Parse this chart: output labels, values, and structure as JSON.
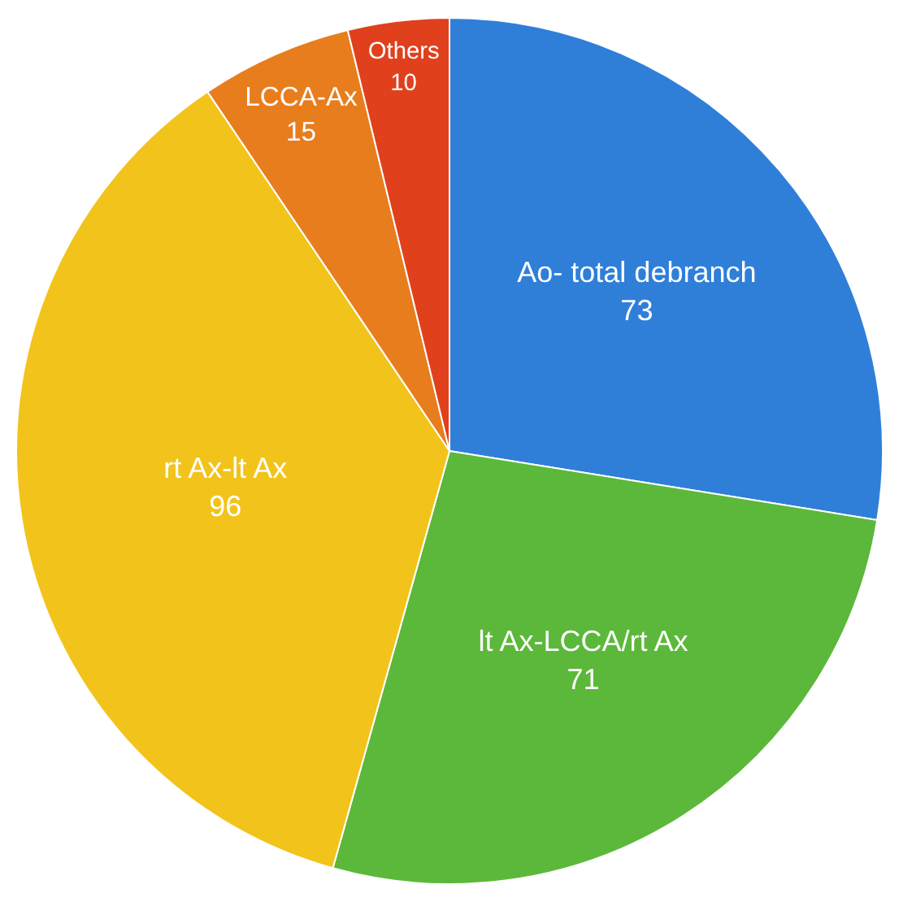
{
  "chart_data": {
    "type": "pie",
    "categories": [
      "Ao- total debranch",
      "lt Ax-LCCA/rt Ax",
      "rt Ax-lt Ax",
      "LCCA-Ax",
      "Others"
    ],
    "values": [
      73,
      71,
      96,
      15,
      10
    ],
    "colors": [
      "#2f7fd9",
      "#5cb83a",
      "#f2c31a",
      "#e87d1e",
      "#e0401c"
    ],
    "data_labels": true,
    "legend": false
  }
}
